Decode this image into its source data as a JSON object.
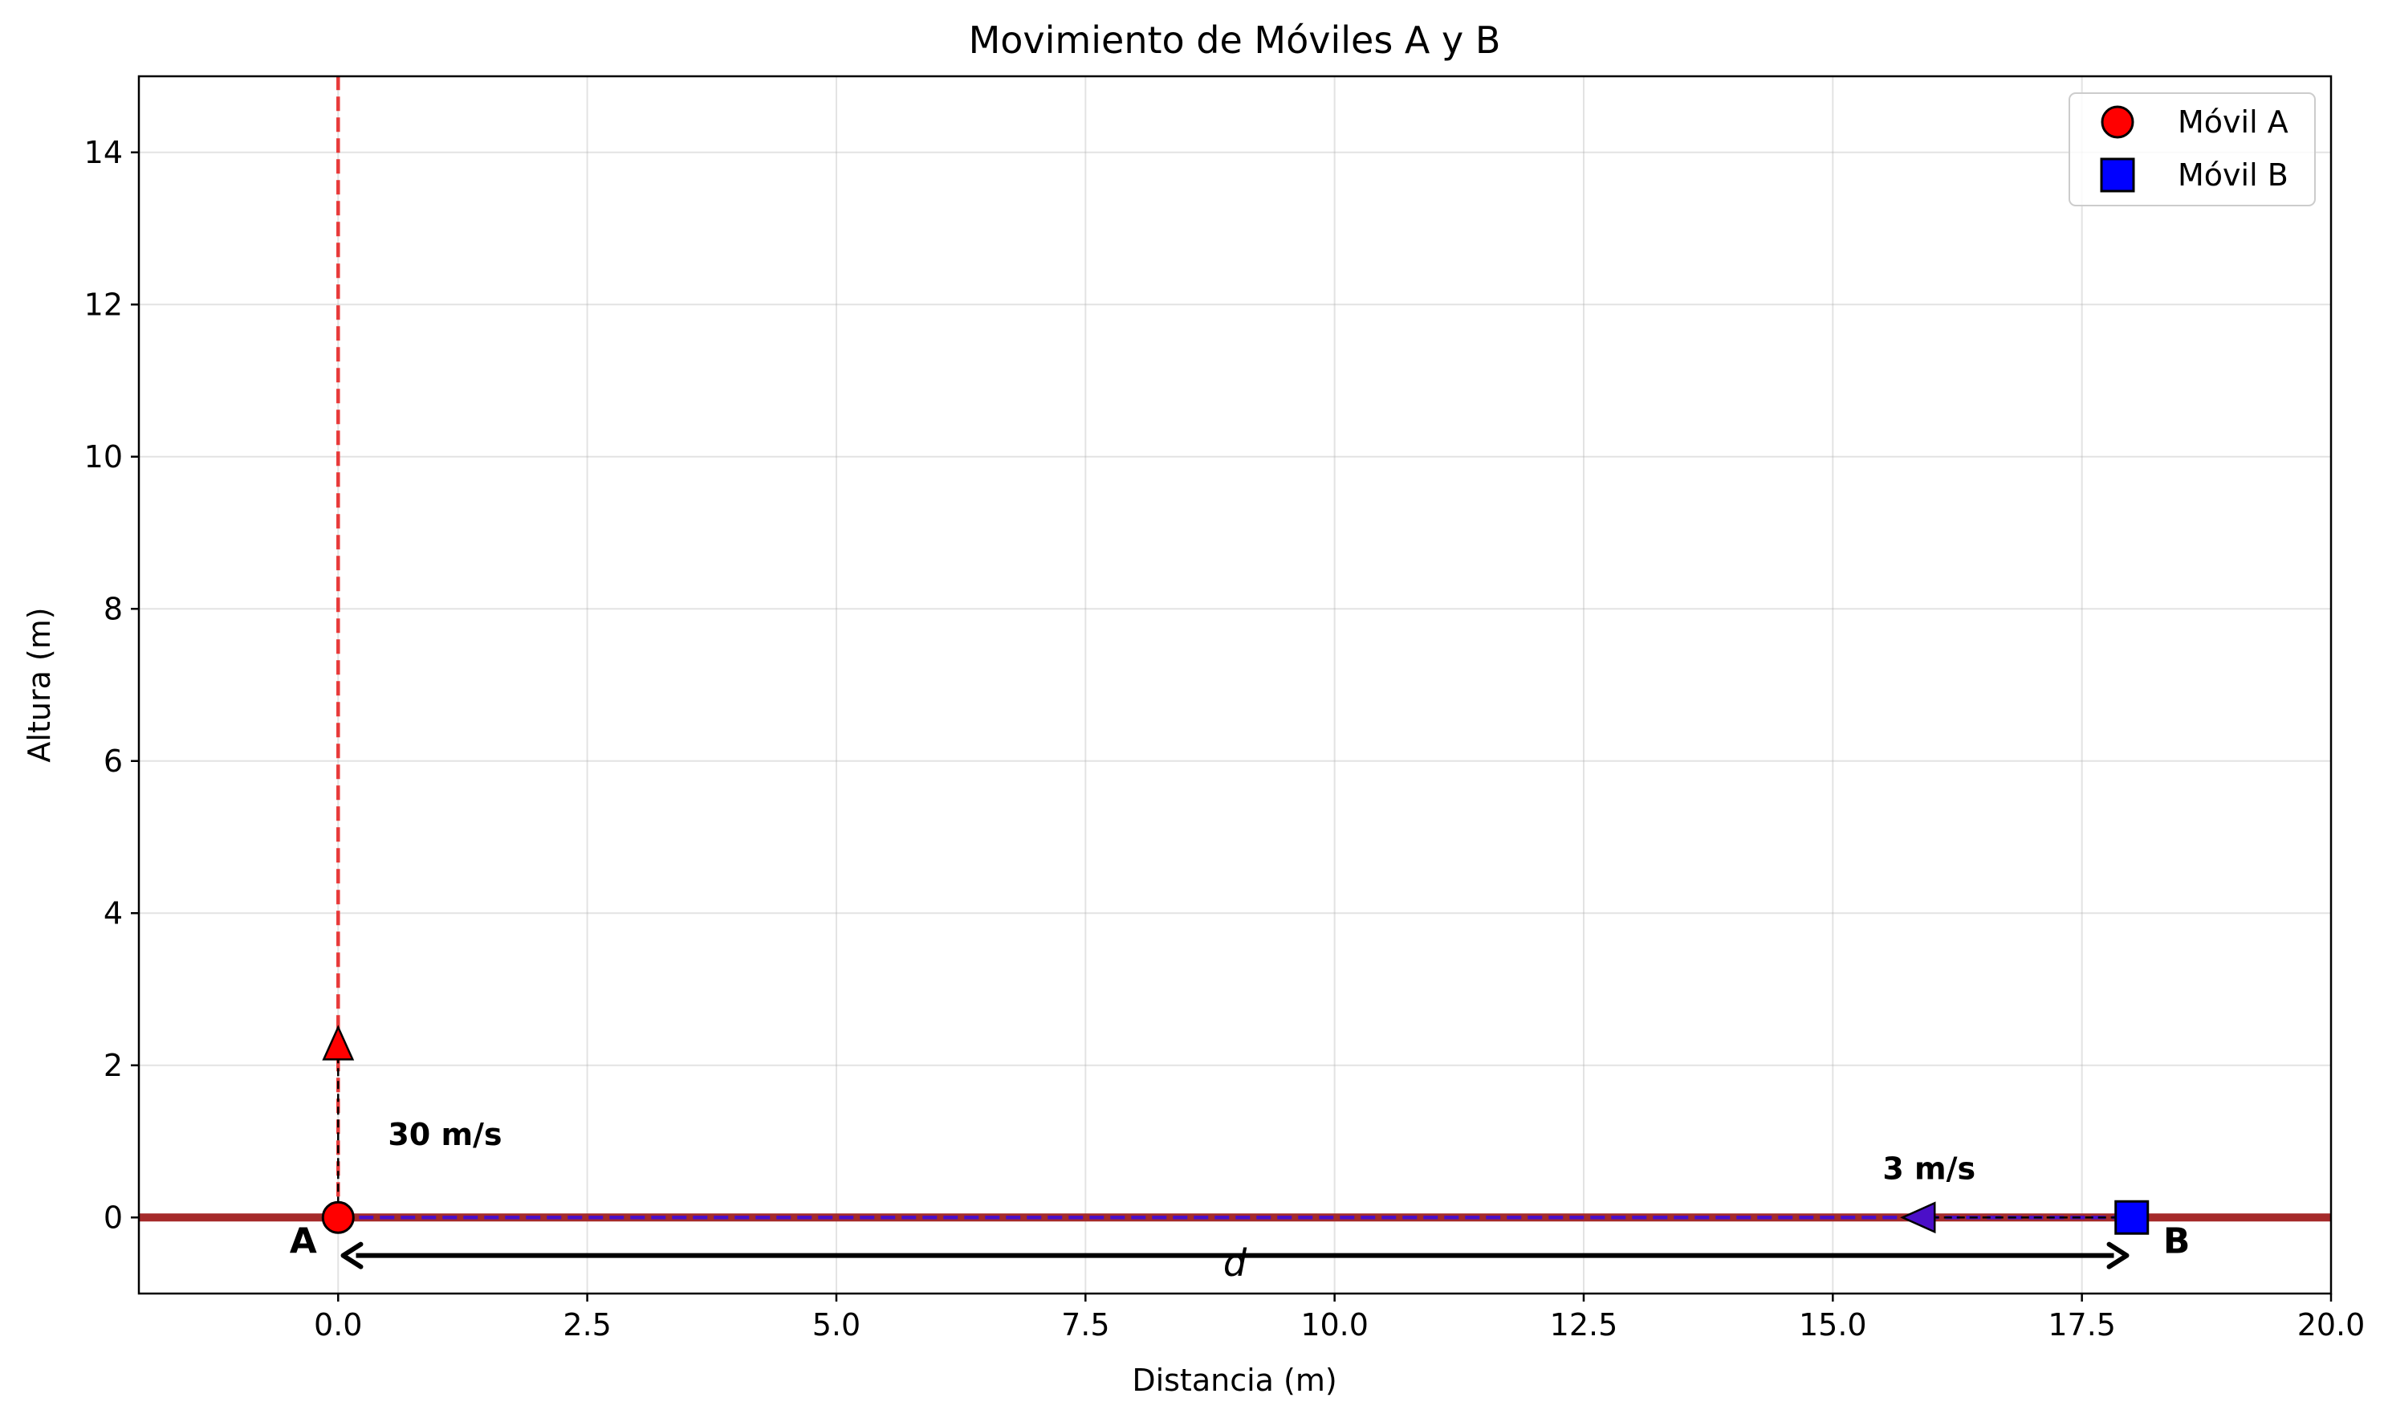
{
  "chart_data": {
    "type": "scatter",
    "title": "Movimiento de Móviles A y B",
    "xlabel": "Distancia (m)",
    "ylabel": "Altura (m)",
    "xlim": [
      -2,
      20
    ],
    "ylim": [
      -1,
      15
    ],
    "x_ticks": [
      0.0,
      2.5,
      5.0,
      7.5,
      10.0,
      12.5,
      15.0,
      17.5,
      20.0
    ],
    "x_tick_labels": [
      "0.0",
      "2.5",
      "5.0",
      "7.5",
      "10.0",
      "12.5",
      "15.0",
      "17.5",
      "20.0"
    ],
    "y_ticks": [
      0,
      2,
      4,
      6,
      8,
      10,
      12,
      14
    ],
    "y_tick_labels": [
      "0",
      "2",
      "4",
      "6",
      "8",
      "10",
      "12",
      "14"
    ],
    "grid": true,
    "legend_position": "top-right",
    "ground": {
      "y": 0,
      "color": "#a52a2a"
    },
    "series": [
      {
        "name": "Móvil A",
        "marker": "circle",
        "color": "#ff0000",
        "x": [
          0
        ],
        "y": [
          0
        ]
      },
      {
        "name": "Móvil B",
        "marker": "square",
        "color": "#0000ff",
        "x": [
          18
        ],
        "y": [
          0
        ]
      }
    ],
    "paths": [
      {
        "from": [
          0,
          0
        ],
        "to": [
          0,
          15
        ],
        "color": "#e83a3a",
        "style": "dashed"
      },
      {
        "from": [
          0,
          0
        ],
        "to": [
          18,
          0
        ],
        "color": "#4b0fc8",
        "style": "dashed"
      }
    ],
    "velocity_arrows": [
      {
        "from": [
          0,
          0
        ],
        "to": [
          0,
          2.5
        ],
        "color": "#ff0000"
      },
      {
        "from": [
          18,
          0
        ],
        "to": [
          15.7,
          0
        ],
        "color": "#4b0fc8"
      }
    ],
    "distance_arrow": {
      "from": 0.05,
      "to": 17.95,
      "y": -0.5
    },
    "annotations": [
      {
        "id": "speed-a",
        "text": "30 m/s",
        "x": 0.5,
        "y": 1.1
      },
      {
        "id": "speed-b",
        "text": "3 m/s",
        "x": 15.5,
        "y": 0.65
      },
      {
        "id": "label-a",
        "text": "A",
        "x": -0.35,
        "y": -0.32
      },
      {
        "id": "label-b",
        "text": "B",
        "x": 18.45,
        "y": -0.32
      },
      {
        "id": "label-d",
        "text": "d",
        "x": 9.0,
        "y": -0.62
      }
    ]
  }
}
